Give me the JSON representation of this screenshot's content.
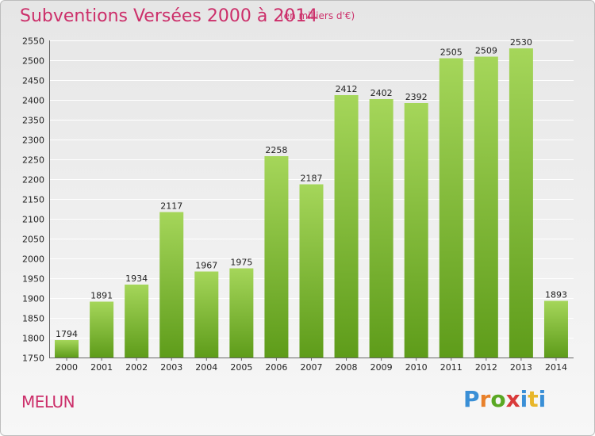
{
  "header": {
    "title": "Subventions Versées 2000 à 2014",
    "subtitle": "(en milliers d'€)"
  },
  "footer": {
    "place": "MELUN",
    "logo_letters": [
      "P",
      "r",
      "o",
      "x",
      "i",
      "t",
      "i"
    ]
  },
  "colors": {
    "title": "#cc2f6a",
    "bar_light": "#a5d65a",
    "bar_dark": "#5e9c1a",
    "grid": "#ffffff"
  },
  "chart_data": {
    "type": "bar",
    "categories": [
      "2000",
      "2001",
      "2002",
      "2003",
      "2004",
      "2005",
      "2006",
      "2007",
      "2008",
      "2009",
      "2010",
      "2011",
      "2012",
      "2013",
      "2014"
    ],
    "values": [
      1794,
      1891,
      1934,
      2117,
      1967,
      1975,
      2258,
      2187,
      2412,
      2402,
      2392,
      2505,
      2509,
      2530,
      1893
    ],
    "ylim": [
      1750,
      2550
    ],
    "yticks": [
      1750,
      1800,
      1850,
      1900,
      1950,
      2000,
      2050,
      2100,
      2150,
      2200,
      2250,
      2300,
      2350,
      2400,
      2450,
      2500,
      2550
    ],
    "grid": true,
    "data_labels": true
  }
}
